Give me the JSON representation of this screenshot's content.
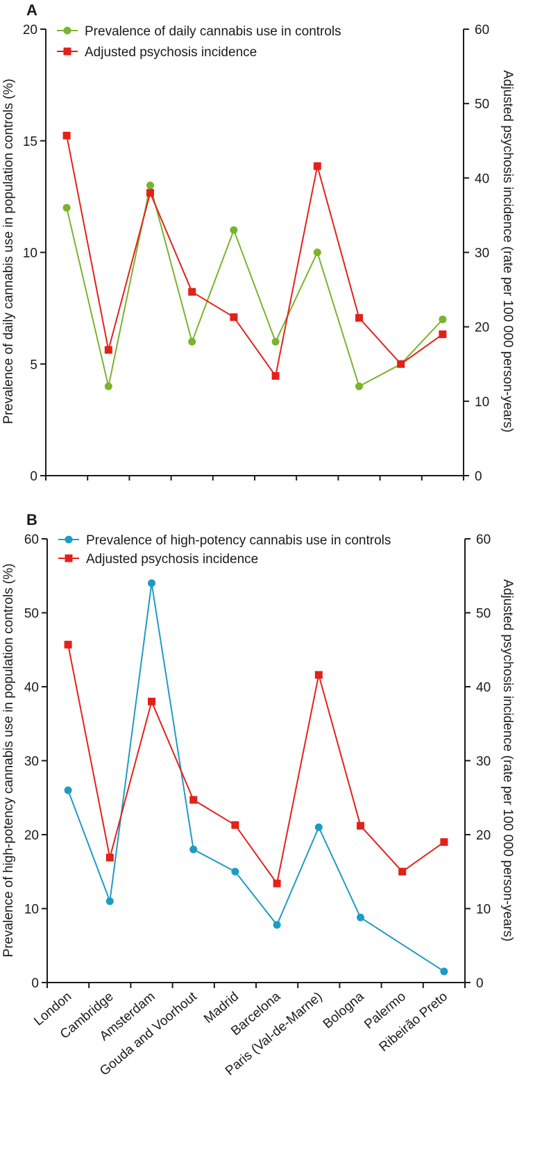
{
  "categories": [
    "London",
    "Cambridge",
    "Amsterdam",
    "Gouda and Voorhout",
    "Madrid",
    "Barcelona",
    "Paris (Val-de-Marne)",
    "Bologna",
    "Palermo",
    "Ribeirão Preto"
  ],
  "colors": {
    "green": "#7ab32e",
    "red": "#e32119",
    "blue": "#1e9bc4",
    "axis": "#1a1a1a"
  },
  "chart_data": [
    {
      "type": "line",
      "panel_label": "A",
      "categories": [
        "London",
        "Cambridge",
        "Amsterdam",
        "Gouda and Voorhout",
        "Madrid",
        "Barcelona",
        "Paris (Val-de-Marne)",
        "Bologna",
        "Palermo",
        "Ribeirão Preto"
      ],
      "ylabel_left": "Prevalence of daily cannabis use in population controls (%)",
      "ylabel_right": "Adjusted psychosis incidence (rate per 100 000 person-years)",
      "ylim_left": [
        0,
        20
      ],
      "ylim_right": [
        0,
        60
      ],
      "yticks_left": [
        "0",
        "5",
        "10",
        "15",
        "20"
      ],
      "yticks_right": [
        "0",
        "10",
        "20",
        "30",
        "40",
        "50",
        "60"
      ],
      "legend_position": "top-left",
      "series": [
        {
          "name": "Prevalence of daily cannabis use in controls",
          "axis": "left",
          "marker": "circle",
          "color": "#7ab32e",
          "values": [
            12,
            4,
            13,
            6,
            11,
            6,
            10,
            4,
            5,
            7
          ]
        },
        {
          "name": "Adjusted psychosis incidence",
          "axis": "right",
          "marker": "square",
          "color": "#e32119",
          "values": [
            45.7,
            16.9,
            38.0,
            24.7,
            21.3,
            13.4,
            41.6,
            21.2,
            15.0,
            19.0
          ]
        }
      ]
    },
    {
      "type": "line",
      "panel_label": "B",
      "categories": [
        "London",
        "Cambridge",
        "Amsterdam",
        "Gouda and Voorhout",
        "Madrid",
        "Barcelona",
        "Paris (Val-de-Marne)",
        "Bologna",
        "Palermo",
        "Ribeirão Preto"
      ],
      "ylabel_left": "Prevalence of high-potency cannabis use in population controls (%)",
      "ylabel_right": "Adjusted psychosis incidence (rate per 100 000 person-years)",
      "ylim_left": [
        0,
        60
      ],
      "ylim_right": [
        0,
        60
      ],
      "yticks_left": [
        "0",
        "10",
        "20",
        "30",
        "40",
        "50",
        "60"
      ],
      "yticks_right": [
        "0",
        "10",
        "20",
        "30",
        "40",
        "50",
        "60"
      ],
      "legend_position": "top-left",
      "series": [
        {
          "name": "Prevalence of high-potency cannabis use in controls",
          "axis": "left",
          "marker": "circle",
          "color": "#1e9bc4",
          "values": [
            26,
            11,
            54,
            18,
            15,
            7.8,
            21,
            8.8,
            null,
            1.5
          ],
          "marker_hidden": [
            false,
            false,
            false,
            false,
            false,
            false,
            false,
            false,
            true,
            false
          ]
        },
        {
          "name": "Adjusted psychosis incidence",
          "axis": "right",
          "marker": "square",
          "color": "#e32119",
          "values": [
            45.7,
            16.9,
            38.0,
            24.7,
            21.3,
            13.4,
            41.6,
            21.2,
            15.0,
            19.0
          ]
        }
      ]
    }
  ]
}
